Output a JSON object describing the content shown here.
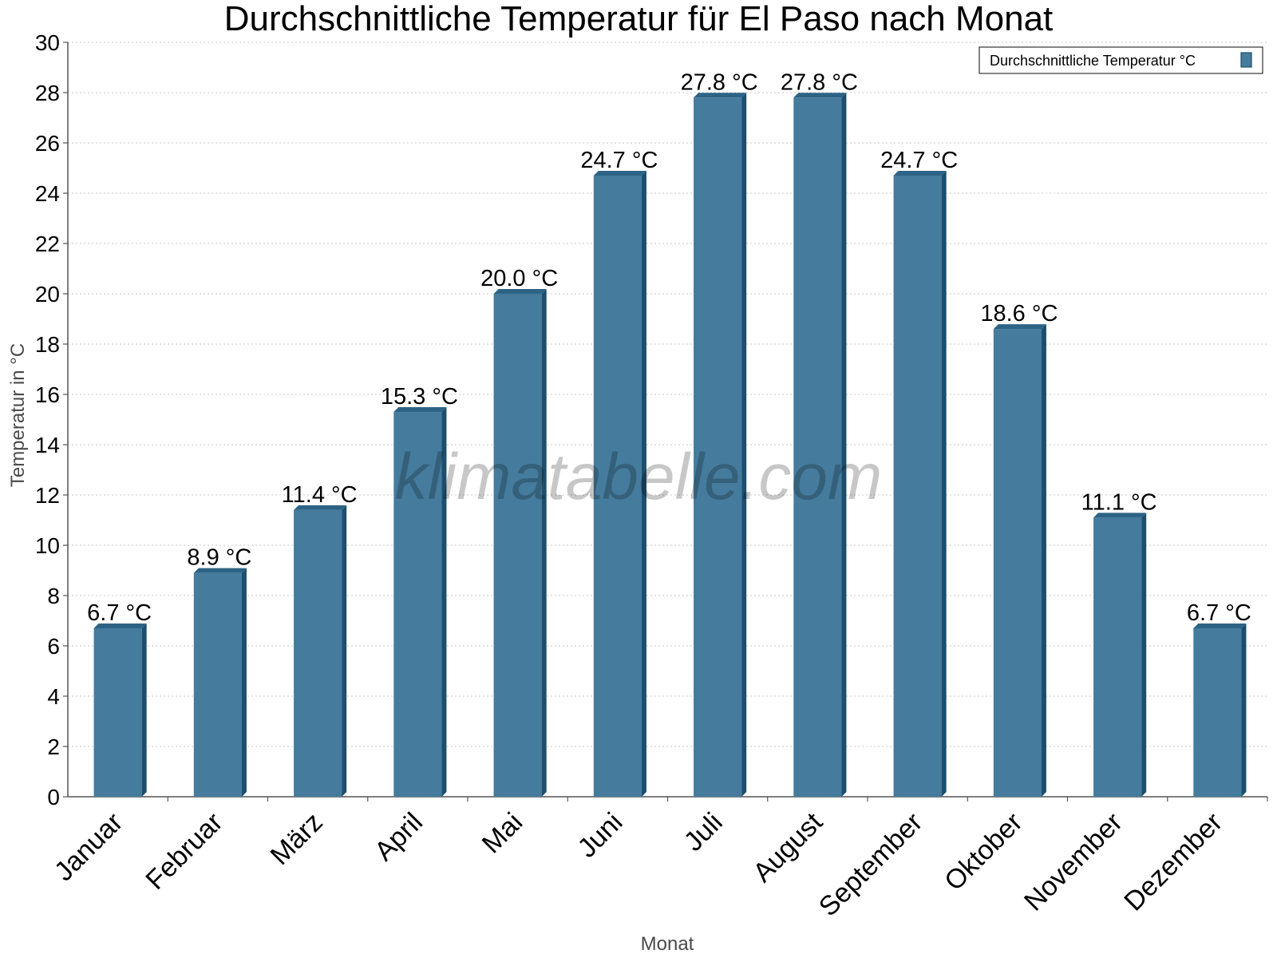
{
  "watermark": "klimatabelle.com",
  "colors": {
    "bar_front": "#457b9d",
    "bar_side": "#1d4e6e",
    "bar_top": "#2d6385",
    "grid": "#c8c8c8",
    "axis": "#555555"
  },
  "chart_data": {
    "type": "bar",
    "title": "Durchschnittliche Temperatur für El Paso nach Monat",
    "xlabel": "Monat",
    "ylabel": "Temperatur in °C",
    "categories": [
      "Januar",
      "Februar",
      "März",
      "April",
      "Mai",
      "Juni",
      "Juli",
      "August",
      "September",
      "Oktober",
      "November",
      "Dezember"
    ],
    "series": [
      {
        "name": "Durchschnittliche Temperatur °C",
        "values": [
          6.7,
          8.9,
          11.4,
          15.3,
          20.0,
          24.7,
          27.8,
          27.8,
          24.7,
          18.6,
          11.1,
          6.7
        ],
        "labels": [
          "6.7 °C",
          "8.9 °C",
          "11.4 °C",
          "15.3 °C",
          "20.0 °C",
          "24.7 °C",
          "27.8 °C",
          "27.8 °C",
          "24.7 °C",
          "18.6 °C",
          "11.1 °C",
          "6.7 °C"
        ]
      }
    ],
    "ylim": [
      0,
      30
    ],
    "ytick_step": 2,
    "grid": true,
    "legend_position": "top-right"
  }
}
